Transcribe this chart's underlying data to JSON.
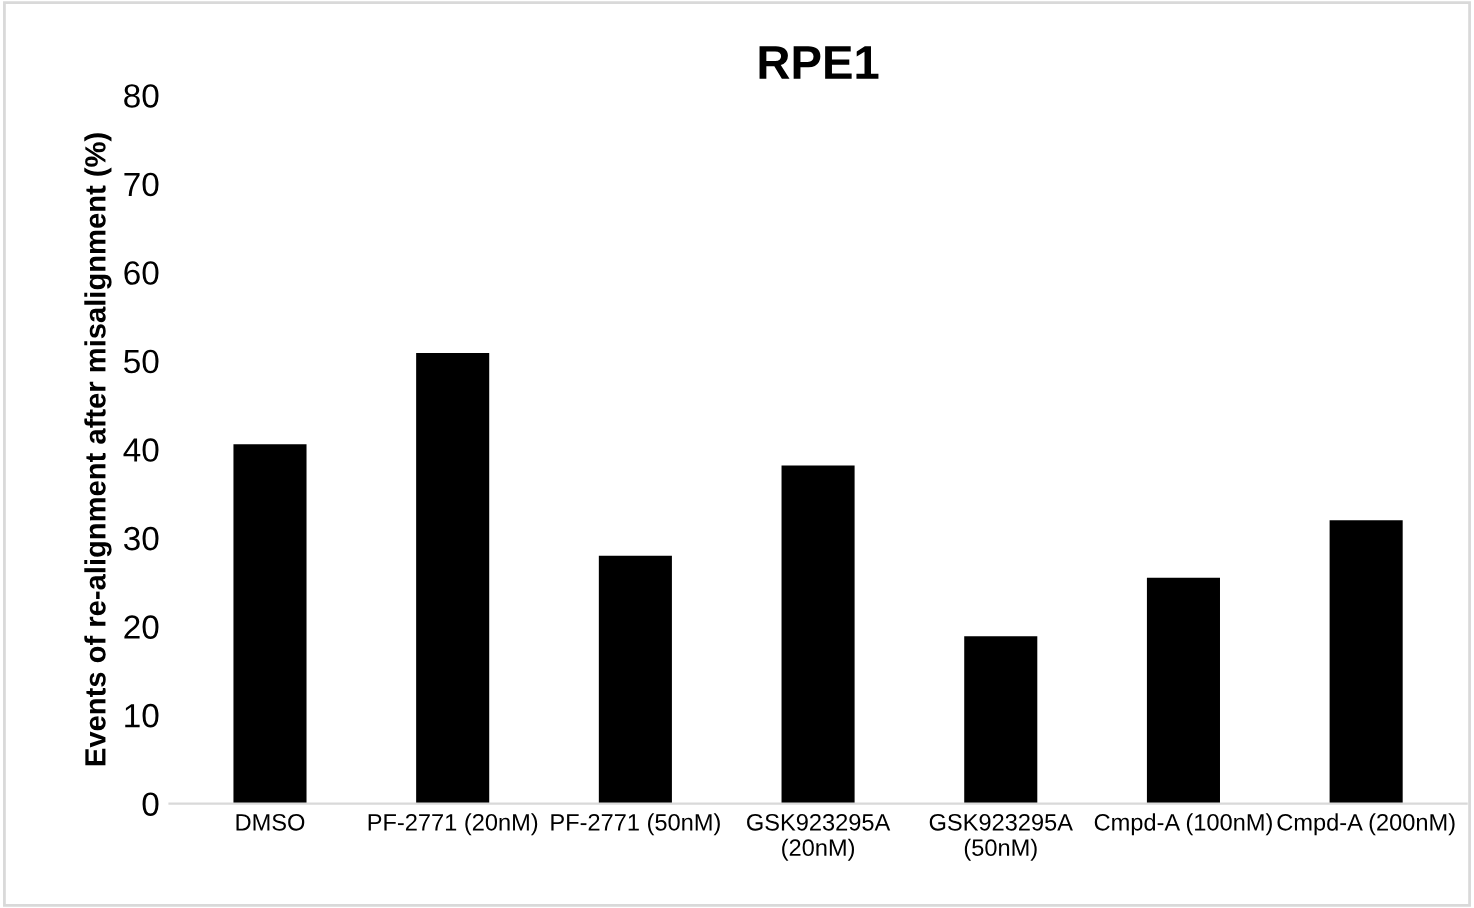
{
  "chart_data": {
    "type": "bar",
    "title": "RPE1",
    "ylabel": "Events of re-alignment after misalignment (%)",
    "categories": [
      "DMSO",
      "PF-2771 (20nM)",
      "PF-2771 (50nM)",
      "GSK923295A\n(20nM)",
      "GSK923295A\n(50nM)",
      "Cmpd-A (100nM)",
      "Cmpd-A (200nM)"
    ],
    "values": [
      40.6,
      50.9,
      28.0,
      38.2,
      18.9,
      25.5,
      32.0
    ],
    "color": "#000000",
    "ylim": [
      0,
      80
    ],
    "yticks": [
      0,
      10,
      20,
      30,
      40,
      50,
      60,
      70,
      80
    ],
    "grid": false,
    "legend": false
  }
}
